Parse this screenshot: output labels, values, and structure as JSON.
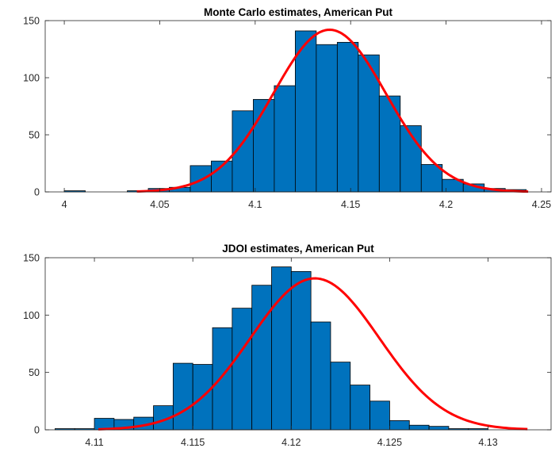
{
  "chart_data": [
    {
      "type": "bar",
      "title": "Monte Carlo estimates, American Put",
      "xlabel": "",
      "ylabel": "",
      "xlim": [
        3.99,
        4.255
      ],
      "ylim": [
        0,
        150
      ],
      "xticks": [
        4,
        4.05,
        4.1,
        4.15,
        4.2,
        4.25
      ],
      "xtick_labels": [
        "4",
        "4.05",
        "4.1",
        "4.15",
        "4.2",
        "4.25"
      ],
      "yticks": [
        0,
        50,
        100,
        150
      ],
      "ytick_labels": [
        "0",
        "50",
        "100",
        "150"
      ],
      "grid": false,
      "legend": "none",
      "bar_color": "#0072BD",
      "curve_color": "#FF0000",
      "bin_edges": [
        4.0,
        4.011,
        4.022,
        4.033,
        4.044,
        4.055,
        4.066,
        4.077,
        4.088,
        4.099,
        4.11,
        4.121,
        4.132,
        4.143,
        4.154,
        4.165,
        4.176,
        4.187,
        4.198,
        4.209,
        4.22,
        4.231,
        4.242
      ],
      "values": [
        1,
        0,
        0,
        1,
        3,
        4,
        23,
        27,
        71,
        81,
        93,
        141,
        129,
        131,
        120,
        84,
        58,
        24,
        11,
        7,
        3,
        2
      ],
      "fit": {
        "type": "normal",
        "mean": 4.139,
        "peak": 142,
        "sd": 0.0295,
        "x_range": [
          4.038,
          4.243
        ]
      }
    },
    {
      "type": "bar",
      "title": "JDOI estimates, American Put",
      "xlabel": "",
      "ylabel": "",
      "xlim": [
        4.1075,
        4.1332
      ],
      "ylim": [
        0,
        150
      ],
      "xticks": [
        4.11,
        4.115,
        4.12,
        4.125,
        4.13
      ],
      "xtick_labels": [
        "4.11",
        "4.115",
        "4.12",
        "4.125",
        "4.13"
      ],
      "yticks": [
        0,
        50,
        100,
        150
      ],
      "ytick_labels": [
        "0",
        "50",
        "100",
        "150"
      ],
      "grid": false,
      "legend": "none",
      "bar_color": "#0072BD",
      "curve_color": "#FF0000",
      "bin_edges": [
        4.108,
        4.109,
        4.11,
        4.111,
        4.112,
        4.113,
        4.114,
        4.115,
        4.116,
        4.117,
        4.118,
        4.119,
        4.12,
        4.121,
        4.122,
        4.123,
        4.124,
        4.125,
        4.126,
        4.127,
        4.128,
        4.129,
        4.13,
        4.131,
        4.132
      ],
      "values": [
        1,
        1,
        10,
        9,
        11,
        21,
        58,
        57,
        89,
        106,
        126,
        142,
        138,
        94,
        59,
        39,
        25,
        8,
        4,
        3,
        1,
        1,
        0,
        0
      ],
      "fit": {
        "type": "normal",
        "mean": 4.1212,
        "peak": 132,
        "sd": 0.00327,
        "x_range": [
          4.1102,
          4.132
        ]
      }
    }
  ]
}
